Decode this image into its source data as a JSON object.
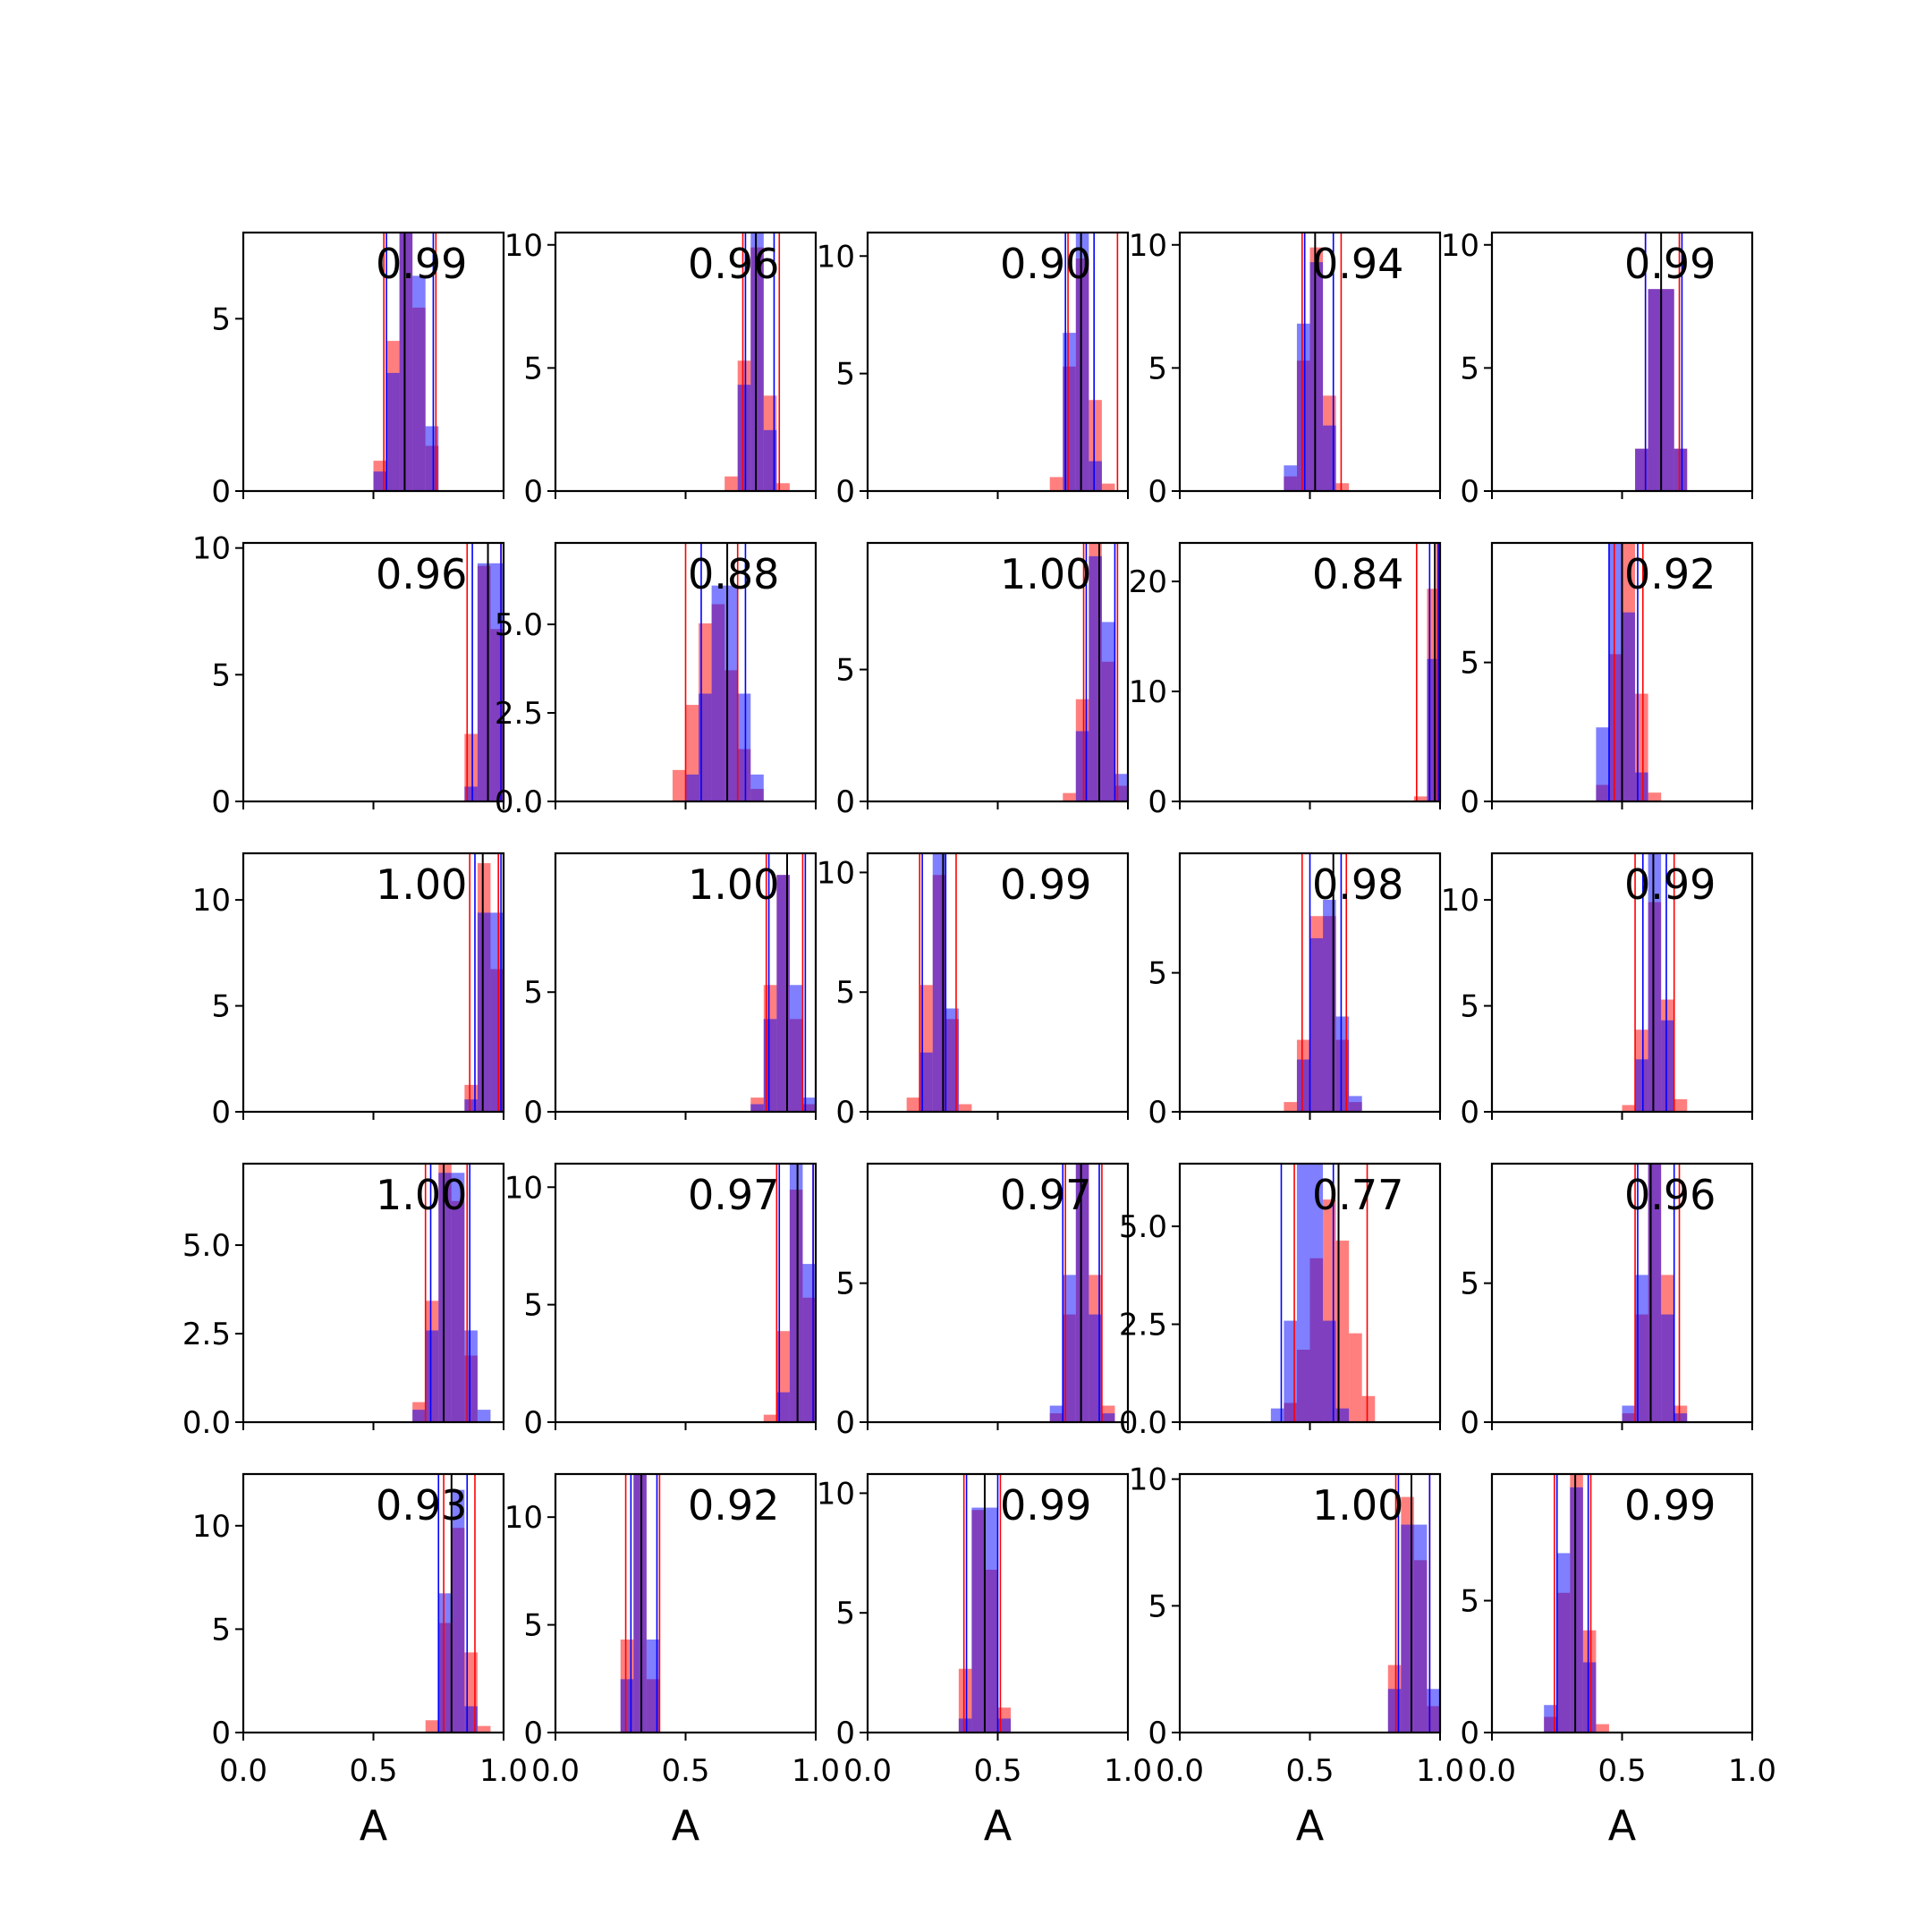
{
  "chart_data": {
    "type": "histogram-grid",
    "rows": 5,
    "cols": 5,
    "xlabel": "A",
    "xlim": [
      0,
      1
    ],
    "xticks": [
      0.0,
      0.5,
      1.0
    ],
    "xtick_labels": [
      "0.0",
      "0.5",
      "1.0"
    ],
    "series_colors": {
      "red": "#ff0000",
      "blue": "#0000ff",
      "black": "#000000"
    },
    "panels": [
      {
        "label": "0.99",
        "ylim": [
          0,
          7.5
        ],
        "yticks": [
          0,
          5
        ],
        "ytick_labels": [
          "0",
          "5"
        ],
        "red": {
          "mu": 0.63,
          "sd": 0.05,
          "lo": 0.54,
          "hi": 0.74
        },
        "blue": {
          "mu": 0.64,
          "sd": 0.05,
          "lo": 0.55,
          "hi": 0.73
        },
        "black": 0.62
      },
      {
        "label": "0.96",
        "ylim": [
          0,
          10.5
        ],
        "yticks": [
          0,
          5,
          10
        ],
        "ytick_labels": [
          "0",
          "5",
          "10"
        ],
        "red": {
          "mu": 0.77,
          "sd": 0.04,
          "lo": 0.72,
          "hi": 0.86
        },
        "blue": {
          "mu": 0.77,
          "sd": 0.03,
          "lo": 0.73,
          "hi": 0.84
        },
        "black": 0.77
      },
      {
        "label": "0.90",
        "ylim": [
          0,
          11
        ],
        "yticks": [
          0,
          5,
          10
        ],
        "ytick_labels": [
          "0",
          "5",
          "10"
        ],
        "red": {
          "mu": 0.82,
          "sd": 0.04,
          "lo": 0.77,
          "hi": 0.96
        },
        "blue": {
          "mu": 0.81,
          "sd": 0.03,
          "lo": 0.76,
          "hi": 0.87
        },
        "black": 0.82
      },
      {
        "label": "0.94",
        "ylim": [
          0,
          10.5
        ],
        "yticks": [
          0,
          5,
          10
        ],
        "ytick_labels": [
          "0",
          "5",
          "10"
        ],
        "red": {
          "mu": 0.52,
          "sd": 0.04,
          "lo": 0.47,
          "hi": 0.62
        },
        "blue": {
          "mu": 0.51,
          "sd": 0.04,
          "lo": 0.48,
          "hi": 0.59
        },
        "black": 0.52
      },
      {
        "label": "0.99",
        "ylim": [
          0,
          10.5
        ],
        "yticks": [
          0,
          5,
          10
        ],
        "ytick_labels": [
          "0",
          "5",
          "10"
        ],
        "red": {
          "mu": 0.65,
          "sd": 0.04,
          "lo": 0.59,
          "hi": 0.72
        },
        "blue": {
          "mu": 0.65,
          "sd": 0.04,
          "lo": 0.59,
          "hi": 0.73
        },
        "black": 0.65
      },
      {
        "label": "0.96",
        "ylim": [
          0,
          10.2
        ],
        "yticks": [
          0,
          5,
          10
        ],
        "ytick_labels": [
          "0",
          "5",
          "10"
        ],
        "red": {
          "mu": 0.94,
          "sd": 0.04,
          "lo": 0.86,
          "hi": 0.99
        },
        "blue": {
          "mu": 0.95,
          "sd": 0.03,
          "lo": 0.88,
          "hi": 0.99
        },
        "black": 0.94
      },
      {
        "label": "0.88",
        "ylim": [
          0,
          7.3
        ],
        "yticks": [
          0,
          2.5,
          5.0
        ],
        "ytick_labels": [
          "0.0",
          "2.5",
          "5.0"
        ],
        "red": {
          "mu": 0.61,
          "sd": 0.07,
          "lo": 0.5,
          "hi": 0.7
        },
        "blue": {
          "mu": 0.65,
          "sd": 0.06,
          "lo": 0.56,
          "hi": 0.73
        },
        "black": 0.66
      },
      {
        "label": "1.00",
        "ylim": [
          0,
          9.8
        ],
        "yticks": [
          0,
          5
        ],
        "ytick_labels": [
          "0",
          "5"
        ],
        "red": {
          "mu": 0.88,
          "sd": 0.04,
          "lo": 0.83,
          "hi": 0.96
        },
        "blue": {
          "mu": 0.89,
          "sd": 0.04,
          "lo": 0.84,
          "hi": 0.95
        },
        "black": 0.89
      },
      {
        "label": "0.84",
        "ylim": [
          0,
          23.5
        ],
        "yticks": [
          0,
          10,
          20
        ],
        "ytick_labels": [
          "0",
          "10",
          "20"
        ],
        "red": {
          "mu": 0.98,
          "sd": 0.02,
          "lo": 0.91,
          "hi": 0.99
        },
        "blue": {
          "mu": 0.99,
          "sd": 0.01,
          "lo": 0.96,
          "hi": 0.995
        },
        "black": 0.98
      },
      {
        "label": "0.92",
        "ylim": [
          0,
          9.3
        ],
        "yticks": [
          0,
          5
        ],
        "ytick_labels": [
          "0",
          "5"
        ],
        "red": {
          "mu": 0.52,
          "sd": 0.04,
          "lo": 0.47,
          "hi": 0.58
        },
        "blue": {
          "mu": 0.49,
          "sd": 0.04,
          "lo": 0.45,
          "hi": 0.56
        },
        "black": 0.5
      },
      {
        "label": "1.00",
        "ylim": [
          0,
          12.2
        ],
        "yticks": [
          0,
          5,
          10
        ],
        "ytick_labels": [
          "0",
          "5",
          "10"
        ],
        "red": {
          "mu": 0.94,
          "sd": 0.03,
          "lo": 0.87,
          "hi": 0.98
        },
        "blue": {
          "mu": 0.95,
          "sd": 0.03,
          "lo": 0.89,
          "hi": 0.99
        },
        "black": 0.92
      },
      {
        "label": "1.00",
        "ylim": [
          0,
          10.8
        ],
        "yticks": [
          0,
          5
        ],
        "ytick_labels": [
          "0",
          "5"
        ],
        "red": {
          "mu": 0.87,
          "sd": 0.04,
          "lo": 0.81,
          "hi": 0.95
        },
        "blue": {
          "mu": 0.88,
          "sd": 0.04,
          "lo": 0.82,
          "hi": 0.96
        },
        "black": 0.89
      },
      {
        "label": "0.99",
        "ylim": [
          0,
          10.8
        ],
        "yticks": [
          0,
          5,
          10
        ],
        "ytick_labels": [
          "0",
          "5",
          "10"
        ],
        "red": {
          "mu": 0.27,
          "sd": 0.04,
          "lo": 0.2,
          "hi": 0.34
        },
        "blue": {
          "mu": 0.28,
          "sd": 0.03,
          "lo": 0.21,
          "hi": 0.3
        },
        "black": 0.29
      },
      {
        "label": "0.98",
        "ylim": [
          0,
          9.3
        ],
        "yticks": [
          0,
          5
        ],
        "ytick_labels": [
          "0",
          "5"
        ],
        "red": {
          "mu": 0.55,
          "sd": 0.05,
          "lo": 0.47,
          "hi": 0.64
        },
        "blue": {
          "mu": 0.56,
          "sd": 0.05,
          "lo": 0.5,
          "hi": 0.62
        },
        "black": 0.59
      },
      {
        "label": "0.99",
        "ylim": [
          0,
          12.2
        ],
        "yticks": [
          0,
          5,
          10
        ],
        "ytick_labels": [
          "0",
          "5",
          "10"
        ],
        "red": {
          "mu": 0.63,
          "sd": 0.04,
          "lo": 0.55,
          "hi": 0.7
        },
        "blue": {
          "mu": 0.63,
          "sd": 0.03,
          "lo": 0.58,
          "hi": 0.67
        },
        "black": 0.62
      },
      {
        "label": "1.00",
        "ylim": [
          0,
          7.3
        ],
        "yticks": [
          0,
          2.5,
          5.0
        ],
        "ytick_labels": [
          "0.0",
          "2.5",
          "5.0"
        ],
        "red": {
          "mu": 0.79,
          "sd": 0.05,
          "lo": 0.7,
          "hi": 0.86
        },
        "blue": {
          "mu": 0.8,
          "sd": 0.05,
          "lo": 0.72,
          "hi": 0.87
        },
        "black": 0.77
      },
      {
        "label": "0.97",
        "ylim": [
          0,
          11
        ],
        "yticks": [
          0,
          5,
          10
        ],
        "ytick_labels": [
          "0",
          "5",
          "10"
        ],
        "red": {
          "mu": 0.93,
          "sd": 0.04,
          "lo": 0.85,
          "hi": 0.99
        },
        "blue": {
          "mu": 0.94,
          "sd": 0.03,
          "lo": 0.86,
          "hi": 0.99
        },
        "black": 0.93
      },
      {
        "label": "0.97",
        "ylim": [
          0,
          9.3
        ],
        "yticks": [
          0,
          5
        ],
        "ytick_labels": [
          "0",
          "5"
        ],
        "red": {
          "mu": 0.83,
          "sd": 0.04,
          "lo": 0.76,
          "hi": 0.9
        },
        "blue": {
          "mu": 0.82,
          "sd": 0.04,
          "lo": 0.75,
          "hi": 0.89
        },
        "black": 0.82
      },
      {
        "label": "0.77",
        "ylim": [
          0,
          6.6
        ],
        "yticks": [
          0,
          2.5,
          5.0
        ],
        "ytick_labels": [
          "0.0",
          "2.5",
          "5.0"
        ],
        "red": {
          "mu": 0.58,
          "sd": 0.07,
          "lo": 0.44,
          "hi": 0.72
        },
        "blue": {
          "mu": 0.5,
          "sd": 0.05,
          "lo": 0.39,
          "hi": 0.59
        },
        "black": 0.61
      },
      {
        "label": "0.96",
        "ylim": [
          0,
          9.3
        ],
        "yticks": [
          0,
          5
        ],
        "ytick_labels": [
          "0",
          "5"
        ],
        "red": {
          "mu": 0.63,
          "sd": 0.04,
          "lo": 0.55,
          "hi": 0.72
        },
        "blue": {
          "mu": 0.62,
          "sd": 0.04,
          "lo": 0.56,
          "hi": 0.7
        },
        "black": 0.61
      },
      {
        "label": "0.93",
        "ylim": [
          0,
          12.5
        ],
        "yticks": [
          0,
          5,
          10
        ],
        "ytick_labels": [
          "0",
          "5",
          "10"
        ],
        "red": {
          "mu": 0.82,
          "sd": 0.04,
          "lo": 0.77,
          "hi": 0.89
        },
        "blue": {
          "mu": 0.81,
          "sd": 0.03,
          "lo": 0.75,
          "hi": 0.86
        },
        "black": 0.8
      },
      {
        "label": "0.92",
        "ylim": [
          0,
          12
        ],
        "yticks": [
          0,
          5,
          10
        ],
        "ytick_labels": [
          "0",
          "5",
          "10"
        ],
        "red": {
          "mu": 0.32,
          "sd": 0.03,
          "lo": 0.27,
          "hi": 0.4
        },
        "blue": {
          "mu": 0.33,
          "sd": 0.03,
          "lo": 0.29,
          "hi": 0.39
        },
        "black": 0.33
      },
      {
        "label": "0.99",
        "ylim": [
          0,
          10.8
        ],
        "yticks": [
          0,
          5,
          10
        ],
        "ytick_labels": [
          "0",
          "5",
          "10"
        ],
        "red": {
          "mu": 0.44,
          "sd": 0.04,
          "lo": 0.37,
          "hi": 0.51
        },
        "blue": {
          "mu": 0.45,
          "sd": 0.03,
          "lo": 0.38,
          "hi": 0.5
        },
        "black": 0.45
      },
      {
        "label": "1.00",
        "ylim": [
          0,
          10.2
        ],
        "yticks": [
          0,
          5,
          10
        ],
        "ytick_labels": [
          "0",
          "5",
          "10"
        ],
        "red": {
          "mu": 0.89,
          "sd": 0.04,
          "lo": 0.83,
          "hi": 0.96
        },
        "blue": {
          "mu": 0.9,
          "sd": 0.04,
          "lo": 0.84,
          "hi": 0.96
        },
        "black": 0.89
      },
      {
        "label": "0.99",
        "ylim": [
          0,
          9.8
        ],
        "yticks": [
          0,
          5
        ],
        "ytick_labels": [
          "0",
          "5"
        ],
        "red": {
          "mu": 0.32,
          "sd": 0.04,
          "lo": 0.24,
          "hi": 0.38
        },
        "blue": {
          "mu": 0.31,
          "sd": 0.04,
          "lo": 0.25,
          "hi": 0.37
        },
        "black": 0.32
      }
    ]
  }
}
